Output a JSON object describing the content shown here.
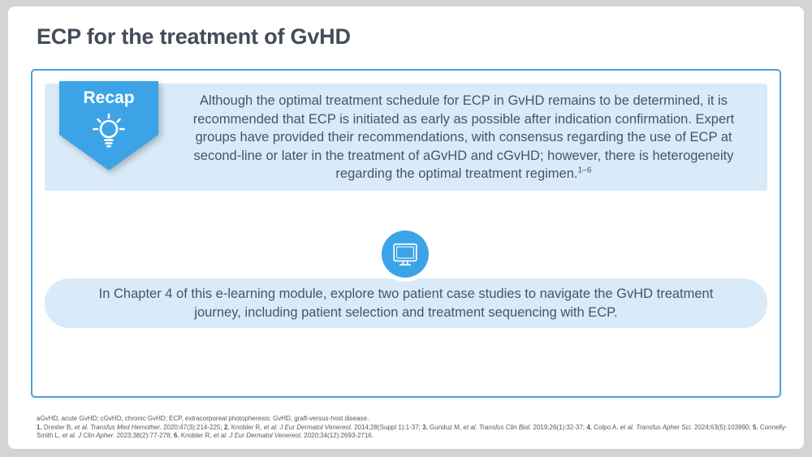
{
  "page": {
    "title": "ECP for the treatment of GvHD"
  },
  "recap": {
    "badge_label": "Recap",
    "badge_icon": "lightbulb-icon",
    "body": "Although the optimal treatment schedule for ECP in GvHD remains to be determined, it is recommended that ECP is initiated as early as possible after indication confirmation. Expert groups have provided their recommendations, with consensus regarding the use of ECP at second-line or later in the treatment of aGvHD and cGvHD; however, there is heterogeneity regarding the optimal treatment regimen.",
    "citation_superscript": "1–6"
  },
  "chapter_callout": {
    "icon": "monitor-icon",
    "body": "In Chapter 4 of this e-learning module, explore two patient case studies to navigate the GvHD treatment journey, including patient selection and treatment sequencing with ECP."
  },
  "footnotes": {
    "abbreviations": "aGvHD, acute GvHD; cGvHD, chronic GvHD; ECP, extracorporeal photopheresis; GvHD, graft-versus-host disease.",
    "references": [
      {
        "num": "1.",
        "authors": "Drexler B,",
        "italic": "et al. Transfus Med Hemother.",
        "detail": "2020;47(3):214-225;"
      },
      {
        "num": "2.",
        "authors": "Knobler R,",
        "italic": "et al. J Eur Dermatol Venereol.",
        "detail": "2014;28(Suppl 1):1-37;"
      },
      {
        "num": "3.",
        "authors": "Gunduz M,",
        "italic": "et al. Transfus Clin Biol.",
        "detail": "2019;26(1):32-37;"
      },
      {
        "num": "4.",
        "authors": "Colpo A,",
        "italic": "et al. Transfus Apher Sci.",
        "detail": "2024;63(5):103990;"
      },
      {
        "num": "5.",
        "authors": "Connelly-Smith L,",
        "italic": "et al. J Clin Apher.",
        "detail": "2023;38(2):77-278;"
      },
      {
        "num": "6.",
        "authors": "Knobler R,",
        "italic": "et al. J Eur Dermatol Venereol.",
        "detail": "2020;34(12):2693-2716."
      }
    ]
  },
  "colors": {
    "accent_blue": "#3CA4E6",
    "panel_light_blue": "#D9EAF8",
    "border_blue": "#4BA1D9",
    "heading_text": "#444B5A",
    "body_text": "#475569",
    "footnote_text": "#58595B",
    "background_gray": "#D4D4D4"
  }
}
